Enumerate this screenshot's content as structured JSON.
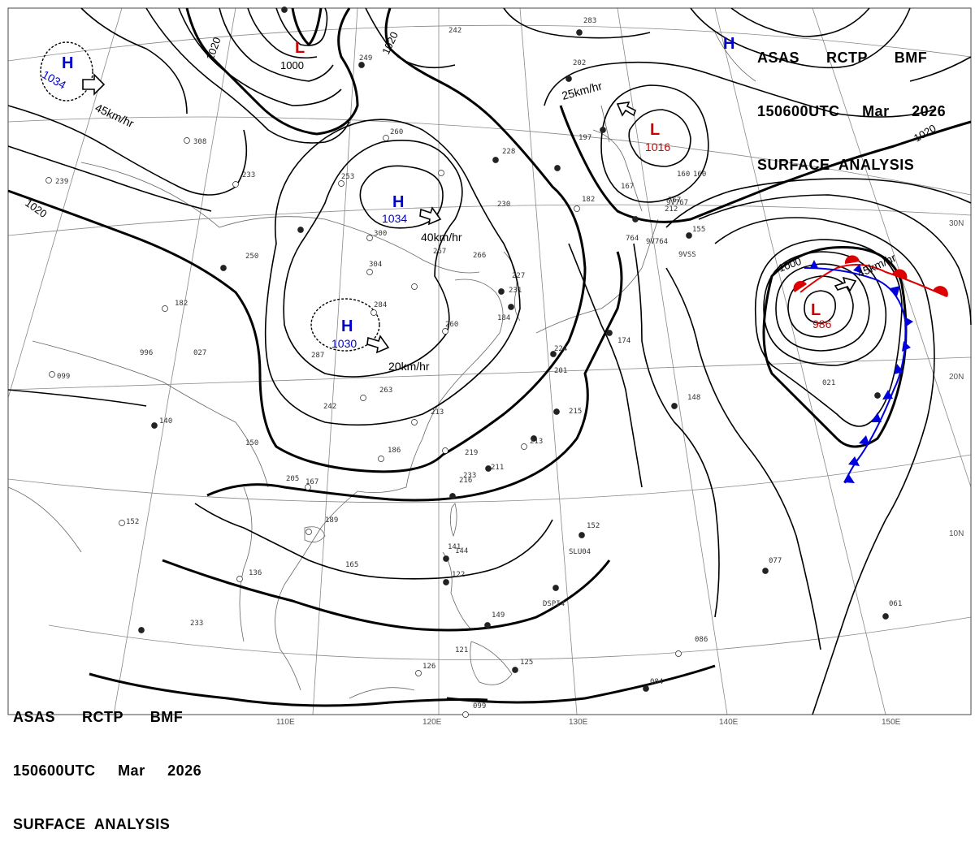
{
  "header_top_right": {
    "line1": "ASAS      RCTP      BMF",
    "line2": "150600UTC     Mar     2026",
    "line3": "SURFACE  ANALYSIS"
  },
  "header_bottom_left": {
    "line1": "ASAS      RCTP      BMF",
    "line2": "150600UTC     Mar     2026",
    "line3": "SURFACE  ANALYSIS"
  },
  "longitude_labels": [
    "110E",
    "120E",
    "130E",
    "140E",
    "150E"
  ],
  "latitude_labels": [
    "30N",
    "20N",
    "10N"
  ],
  "isobar_labels": [
    "1020",
    "1020",
    "1020",
    "1000",
    "1020",
    "1000"
  ],
  "pressure_centers": [
    {
      "type": "H",
      "value": "1034",
      "color": "#0000cc",
      "name": "high-mongolia-nw"
    },
    {
      "type": "L",
      "value": "1000",
      "color": "#cc0000",
      "name": "low-north"
    },
    {
      "type": "H",
      "value": "1034",
      "color": "#0000cc",
      "name": "high-central-china"
    },
    {
      "type": "H",
      "value": "1030",
      "color": "#0000cc",
      "name": "high-south-china"
    },
    {
      "type": "L",
      "value": "1016",
      "color": "#cc0000",
      "name": "low-japan"
    },
    {
      "type": "L",
      "value": "986",
      "color": "#cc0000",
      "name": "low-pacific"
    },
    {
      "type": "H",
      "value": "",
      "color": "#0000cc",
      "name": "high-northeast"
    }
  ],
  "movement_labels": [
    "45km/hr",
    "40km/hr",
    "20km/hr",
    "25km/hr",
    "45km/hr"
  ],
  "station_plots": [
    "308",
    "239",
    "233",
    "253",
    "260",
    "228",
    "230",
    "182",
    "167",
    "160",
    "300",
    "304",
    "267",
    "266",
    "227",
    "231",
    "284",
    "287",
    "250",
    "182",
    "996",
    "027",
    "099",
    "260",
    "224",
    "201",
    "215",
    "213",
    "242",
    "263",
    "213",
    "219",
    "211",
    "186",
    "150",
    "140",
    "167",
    "216",
    "189",
    "165",
    "152",
    "136",
    "144",
    "141",
    "122",
    "149",
    "121",
    "125",
    "126",
    "099",
    "084",
    "086",
    "077",
    "061",
    "021",
    "148",
    "212",
    "764",
    "767",
    "197",
    "155",
    "249",
    "242",
    "283",
    "202",
    "233",
    "152",
    "233",
    "205",
    "184",
    "160",
    "174"
  ],
  "station_ids": [
    "SLU04",
    "DSPI4",
    "9V764",
    "9V767",
    "9VSS"
  ],
  "colors": {
    "isobar": "#000000",
    "warm_front": "#dd0000",
    "cold_front": "#0000dd",
    "high": "#0000cc",
    "low": "#cc0000",
    "coast": "#555555",
    "grid": "#888888"
  }
}
